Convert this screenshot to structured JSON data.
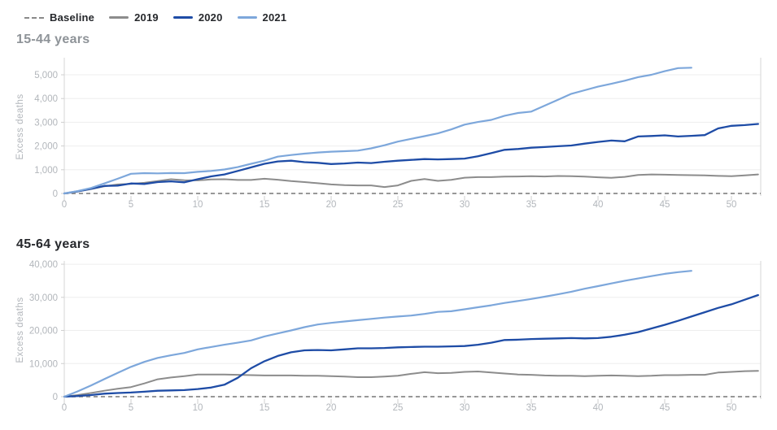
{
  "legend": {
    "items": [
      {
        "label": "Baseline",
        "swatch": "dashed",
        "color": "#8a8a8a"
      },
      {
        "label": "2019",
        "swatch": "line",
        "color": "#8c8c8c"
      },
      {
        "label": "2020",
        "swatch": "line",
        "color": "#1e4ca6"
      },
      {
        "label": "2021",
        "swatch": "line",
        "color": "#7da7db"
      }
    ]
  },
  "colors": {
    "grid": "#eeeeee",
    "axis": "#d6d6d6",
    "tick": "#cfcfcf",
    "tick_label": "#b2b6bb",
    "axis_title": "#b2b6bb",
    "baseline": "#8a8a8a"
  },
  "chart_data": [
    {
      "type": "line",
      "title": "15-44 years",
      "ylabel": "Excess deaths",
      "xlabel": "",
      "xlim": [
        0,
        52.2
      ],
      "ylim": [
        0,
        5720
      ],
      "grid": true,
      "legend_position": "top-left",
      "xticks": [
        0,
        5,
        10,
        15,
        20,
        25,
        30,
        35,
        40,
        45,
        50
      ],
      "yticks": [
        {
          "v": 0,
          "label": "0"
        },
        {
          "v": 1000,
          "label": "1,000"
        },
        {
          "v": 2000,
          "label": "2,000"
        },
        {
          "v": 3000,
          "label": "3,000"
        },
        {
          "v": 4000,
          "label": "4,000"
        },
        {
          "v": 5000,
          "label": "5,000"
        }
      ],
      "baseline": {
        "name": "Baseline",
        "value": 0,
        "style": "dashed"
      },
      "series": [
        {
          "name": "2019",
          "color": "#8c8c8c",
          "width": 2,
          "values": [
            0,
            80,
            180,
            300,
            380,
            400,
            450,
            520,
            600,
            560,
            550,
            590,
            600,
            570,
            570,
            620,
            580,
            520,
            480,
            430,
            380,
            350,
            340,
            340,
            270,
            340,
            530,
            610,
            530,
            575,
            665,
            690,
            690,
            710,
            715,
            725,
            715,
            735,
            725,
            710,
            680,
            660,
            700,
            780,
            800,
            790,
            780,
            770,
            760,
            740,
            730,
            760,
            800
          ]
        },
        {
          "name": "2020",
          "color": "#1e4ca6",
          "width": 2.3,
          "values": [
            0,
            90,
            200,
            320,
            330,
            420,
            400,
            480,
            510,
            470,
            600,
            720,
            800,
            950,
            1100,
            1250,
            1350,
            1380,
            1320,
            1290,
            1240,
            1265,
            1300,
            1280,
            1335,
            1380,
            1415,
            1450,
            1435,
            1450,
            1470,
            1565,
            1700,
            1840,
            1875,
            1930,
            1955,
            1990,
            2020,
            2100,
            2170,
            2230,
            2200,
            2400,
            2420,
            2450,
            2400,
            2430,
            2460,
            2740,
            2850,
            2880,
            2930
          ]
        },
        {
          "name": "2021",
          "color": "#7da7db",
          "width": 2.2,
          "values": [
            0,
            100,
            230,
            420,
            620,
            830,
            855,
            845,
            860,
            855,
            910,
            950,
            1010,
            1110,
            1250,
            1380,
            1550,
            1620,
            1680,
            1725,
            1760,
            1780,
            1805,
            1900,
            2030,
            2185,
            2300,
            2415,
            2530,
            2700,
            2900,
            3010,
            3100,
            3275,
            3390,
            3450,
            3700,
            3950,
            4200,
            4350,
            4500,
            4620,
            4750,
            4900,
            5000,
            5150,
            5280,
            5300
          ]
        }
      ]
    },
    {
      "type": "line",
      "title": "45-64 years",
      "ylabel": "Excess deaths",
      "xlabel": "",
      "xlim": [
        0,
        52.2
      ],
      "ylim": [
        0,
        41000
      ],
      "grid": true,
      "legend_position": "top-left",
      "xticks": [
        0,
        5,
        10,
        15,
        20,
        25,
        30,
        35,
        40,
        45,
        50
      ],
      "yticks": [
        {
          "v": 0,
          "label": "0"
        },
        {
          "v": 10000,
          "label": "10,000"
        },
        {
          "v": 20000,
          "label": "20,000"
        },
        {
          "v": 30000,
          "label": "30,000"
        },
        {
          "v": 40000,
          "label": "40,000"
        }
      ],
      "baseline": {
        "name": "Baseline",
        "value": 0,
        "style": "dashed"
      },
      "series": [
        {
          "name": "2019",
          "color": "#8c8c8c",
          "width": 2,
          "values": [
            0,
            500,
            1100,
            1800,
            2400,
            2900,
            4000,
            5250,
            5800,
            6200,
            6700,
            6700,
            6700,
            6600,
            6500,
            6400,
            6400,
            6400,
            6300,
            6300,
            6200,
            6100,
            5900,
            5900,
            6100,
            6300,
            6900,
            7400,
            7100,
            7200,
            7500,
            7600,
            7300,
            7000,
            6700,
            6600,
            6400,
            6300,
            6300,
            6200,
            6300,
            6400,
            6300,
            6200,
            6300,
            6500,
            6500,
            6600,
            6600,
            7300,
            7500,
            7700,
            7800
          ]
        },
        {
          "name": "2020",
          "color": "#1e4ca6",
          "width": 2.3,
          "values": [
            0,
            200,
            500,
            900,
            1100,
            1250,
            1500,
            1800,
            1900,
            2000,
            2300,
            2750,
            3600,
            5700,
            8600,
            10700,
            12300,
            13400,
            14000,
            14100,
            14000,
            14300,
            14600,
            14600,
            14700,
            14900,
            15000,
            15100,
            15100,
            15200,
            15300,
            15700,
            16300,
            17100,
            17200,
            17400,
            17500,
            17600,
            17700,
            17600,
            17700,
            18100,
            18700,
            19500,
            20600,
            21700,
            22900,
            24200,
            25500,
            26800,
            27900,
            29300,
            30700
          ]
        },
        {
          "name": "2021",
          "color": "#7da7db",
          "width": 2.2,
          "values": [
            0,
            1600,
            3400,
            5300,
            7200,
            9000,
            10500,
            11700,
            12500,
            13200,
            14300,
            15000,
            15700,
            16300,
            17000,
            18200,
            19100,
            20000,
            21000,
            21800,
            22300,
            22700,
            23100,
            23500,
            23900,
            24200,
            24500,
            25000,
            25600,
            25800,
            26400,
            27000,
            27600,
            28300,
            28900,
            29500,
            30200,
            30900,
            31700,
            32600,
            33400,
            34200,
            35000,
            35700,
            36400,
            37100,
            37600,
            38000
          ]
        }
      ]
    }
  ]
}
